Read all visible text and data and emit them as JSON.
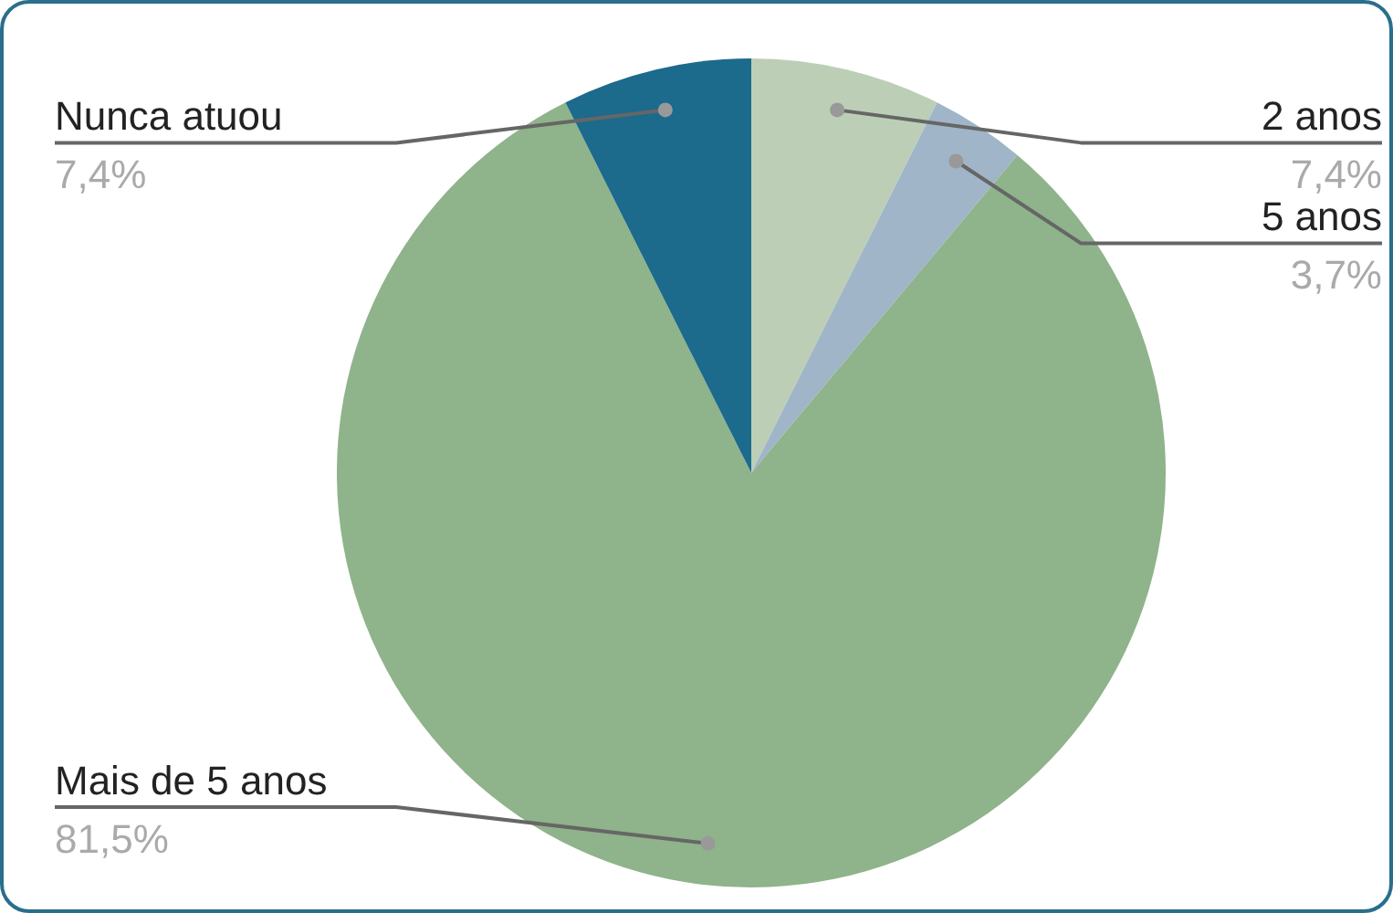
{
  "chart_data": {
    "type": "pie",
    "categories": [
      "2 anos",
      "5 anos",
      "Mais de 5 anos",
      "Nunca atuou"
    ],
    "values": [
      7.4,
      3.7,
      81.5,
      7.4
    ],
    "value_labels": [
      "7,4%",
      "3,7%",
      "81,5%",
      "7,4%"
    ],
    "colors": [
      "#bccfb6",
      "#a0b5c8",
      "#8fb38a",
      "#1c6a8c"
    ],
    "legend": false
  }
}
